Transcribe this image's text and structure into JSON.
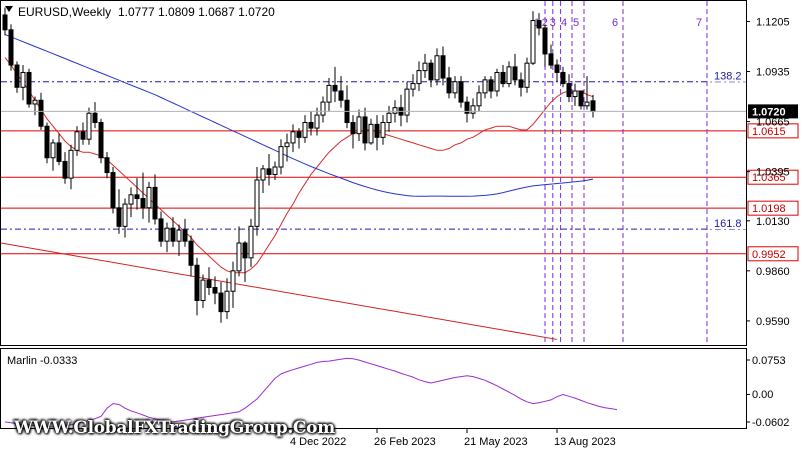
{
  "header": {
    "symbol_timeframe": "EURUSD,Weekly",
    "ohlc": "1.0777 1.0809 1.0687 1.0720"
  },
  "oscillator": {
    "label": "Marlin -0.0333",
    "scale": [
      "0.0753",
      "0.00",
      "-0.0602"
    ]
  },
  "watermark": "WWW.GlobalFXTradingGroup.Com",
  "chart_data": {
    "type": "candlestick",
    "price_scale_labels": [
      "1.1205",
      "1.0935",
      "1.0665",
      "1.0395",
      "1.0130",
      "0.9860",
      "0.9590"
    ],
    "x_tick_labels": [
      "4 Dec 2022",
      "26 Feb 2023",
      "21 May 2023",
      "13 Aug 2023"
    ],
    "ylim": [
      0.946,
      1.131
    ],
    "current_price": 1.072,
    "current_price_label": "1.0720",
    "horizontal_levels": [
      {
        "value": 1.0615,
        "label": "1.0615"
      },
      {
        "value": 1.0365,
        "label": "1.0365"
      },
      {
        "value": 1.0198,
        "label": "1.0198"
      },
      {
        "value": 0.9952,
        "label": "0.9952"
      }
    ],
    "fibo_levels": [
      {
        "value": 1.088,
        "label": "138.2"
      },
      {
        "value": 1.0085,
        "label": "161.8"
      }
    ],
    "time_lines": [
      "1",
      "2",
      "3",
      "4",
      "5",
      "6",
      "7"
    ],
    "candles": [
      [
        1.124,
        1.128,
        1.113,
        1.116
      ],
      [
        1.116,
        1.119,
        1.094,
        1.097
      ],
      [
        1.097,
        1.099,
        1.082,
        1.085
      ],
      [
        1.085,
        1.097,
        1.078,
        1.093
      ],
      [
        1.093,
        1.095,
        1.074,
        1.076
      ],
      [
        1.076,
        1.08,
        1.07,
        1.078
      ],
      [
        1.078,
        1.082,
        1.062,
        1.064
      ],
      [
        1.064,
        1.066,
        1.044,
        1.047
      ],
      [
        1.047,
        1.057,
        1.04,
        1.055
      ],
      [
        1.055,
        1.06,
        1.043,
        1.045
      ],
      [
        1.045,
        1.05,
        1.033,
        1.036
      ],
      [
        1.036,
        1.054,
        1.03,
        1.051
      ],
      [
        1.051,
        1.064,
        1.048,
        1.061
      ],
      [
        1.061,
        1.066,
        1.054,
        1.057
      ],
      [
        1.057,
        1.074,
        1.054,
        1.071
      ],
      [
        1.071,
        1.077,
        1.063,
        1.066
      ],
      [
        1.066,
        1.068,
        1.044,
        1.047
      ],
      [
        1.047,
        1.05,
        1.036,
        1.039
      ],
      [
        1.039,
        1.042,
        1.017,
        1.02
      ],
      [
        1.02,
        1.03,
        1.006,
        1.01
      ],
      [
        1.01,
        1.025,
        1.004,
        1.022
      ],
      [
        1.022,
        1.031,
        1.015,
        1.027
      ],
      [
        1.027,
        1.036,
        1.019,
        1.025
      ],
      [
        1.025,
        1.039,
        1.014,
        1.02
      ],
      [
        1.02,
        1.034,
        1.012,
        1.031
      ],
      [
        1.031,
        1.038,
        1.011,
        1.014
      ],
      [
        1.014,
        1.018,
        0.999,
        1.002
      ],
      [
        1.002,
        1.012,
        0.996,
        1.009
      ],
      [
        1.009,
        1.015,
        0.999,
        1.002
      ],
      [
        1.002,
        1.011,
        0.994,
        1.008
      ],
      [
        1.008,
        1.014,
        0.999,
        1.002
      ],
      [
        1.002,
        1.005,
        0.983,
        0.989
      ],
      [
        0.989,
        0.993,
        0.962,
        0.97
      ],
      [
        0.97,
        0.984,
        0.966,
        0.981
      ],
      [
        0.981,
        0.988,
        0.973,
        0.977
      ],
      [
        0.977,
        0.983,
        0.968,
        0.974
      ],
      [
        0.974,
        0.98,
        0.958,
        0.964
      ],
      [
        0.964,
        0.982,
        0.96,
        0.975
      ],
      [
        0.975,
        0.991,
        0.966,
        0.986
      ],
      [
        0.986,
        1.01,
        0.983,
        1.001
      ],
      [
        1.001,
        1.002,
        0.98,
        0.993
      ],
      [
        0.993,
        1.014,
        0.988,
        1.01
      ],
      [
        1.01,
        1.042,
        1.005,
        1.035
      ],
      [
        1.035,
        1.043,
        1.028,
        1.041
      ],
      [
        1.041,
        1.049,
        1.032,
        1.038
      ],
      [
        1.038,
        1.045,
        1.035,
        1.042
      ],
      [
        1.042,
        1.057,
        1.038,
        1.053
      ],
      [
        1.053,
        1.06,
        1.045,
        1.055
      ],
      [
        1.055,
        1.065,
        1.05,
        1.061
      ],
      [
        1.061,
        1.063,
        1.052,
        1.058
      ],
      [
        1.058,
        1.07,
        1.055,
        1.066
      ],
      [
        1.066,
        1.072,
        1.059,
        1.063
      ],
      [
        1.063,
        1.074,
        1.059,
        1.07
      ],
      [
        1.07,
        1.08,
        1.066,
        1.077
      ],
      [
        1.077,
        1.09,
        1.072,
        1.086
      ],
      [
        1.086,
        1.096,
        1.077,
        1.083
      ],
      [
        1.083,
        1.091,
        1.074,
        1.078
      ],
      [
        1.078,
        1.086,
        1.063,
        1.066
      ],
      [
        1.066,
        1.07,
        1.052,
        1.06
      ],
      [
        1.06,
        1.073,
        1.056,
        1.069
      ],
      [
        1.069,
        1.074,
        1.051,
        1.055
      ],
      [
        1.055,
        1.068,
        1.054,
        1.065
      ],
      [
        1.065,
        1.07,
        1.051,
        1.058
      ],
      [
        1.058,
        1.07,
        1.054,
        1.066
      ],
      [
        1.066,
        1.075,
        1.061,
        1.071
      ],
      [
        1.071,
        1.078,
        1.066,
        1.074
      ],
      [
        1.074,
        1.081,
        1.064,
        1.07
      ],
      [
        1.07,
        1.088,
        1.066,
        1.084
      ],
      [
        1.084,
        1.092,
        1.08,
        1.087
      ],
      [
        1.087,
        1.099,
        1.083,
        1.094
      ],
      [
        1.094,
        1.103,
        1.09,
        1.098
      ],
      [
        1.098,
        1.1,
        1.085,
        1.089
      ],
      [
        1.089,
        1.106,
        1.086,
        1.102
      ],
      [
        1.102,
        1.107,
        1.086,
        1.09
      ],
      [
        1.09,
        1.096,
        1.079,
        1.082
      ],
      [
        1.082,
        1.091,
        1.079,
        1.088
      ],
      [
        1.088,
        1.091,
        1.074,
        1.077
      ],
      [
        1.077,
        1.08,
        1.066,
        1.071
      ],
      [
        1.071,
        1.079,
        1.068,
        1.075
      ],
      [
        1.075,
        1.086,
        1.072,
        1.082
      ],
      [
        1.082,
        1.091,
        1.079,
        1.089
      ],
      [
        1.089,
        1.091,
        1.079,
        1.083
      ],
      [
        1.083,
        1.095,
        1.08,
        1.093
      ],
      [
        1.093,
        1.097,
        1.085,
        1.087
      ],
      [
        1.087,
        1.099,
        1.085,
        1.096
      ],
      [
        1.096,
        1.103,
        1.086,
        1.089
      ],
      [
        1.089,
        1.093,
        1.08,
        1.085
      ],
      [
        1.085,
        1.101,
        1.082,
        1.098
      ],
      [
        1.098,
        1.126,
        1.097,
        1.121
      ],
      [
        1.121,
        1.125,
        1.113,
        1.117
      ],
      [
        1.117,
        1.119,
        1.096,
        1.103
      ],
      [
        1.103,
        1.108,
        1.095,
        1.097
      ],
      [
        1.097,
        1.1,
        1.088,
        1.093
      ],
      [
        1.093,
        1.096,
        1.085,
        1.087
      ],
      [
        1.087,
        1.092,
        1.077,
        1.08
      ],
      [
        1.08,
        1.087,
        1.075,
        1.083
      ],
      [
        1.083,
        1.083,
        1.073,
        1.075
      ],
      [
        1.075,
        1.091,
        1.073,
        1.077
      ],
      [
        1.0777,
        1.0809,
        1.0687,
        1.072
      ]
    ],
    "red_ma": [
      1.101,
      1.097,
      1.092,
      1.088,
      1.083,
      1.078,
      1.073,
      1.068,
      1.064,
      1.06,
      1.056,
      1.053,
      1.051,
      1.05,
      1.05,
      1.049,
      1.048,
      1.046,
      1.043,
      1.04,
      1.037,
      1.034,
      1.031,
      1.028,
      1.025,
      1.022,
      1.019,
      1.016,
      1.013,
      1.01,
      1.007,
      1.004,
      1.0,
      0.997,
      0.994,
      0.991,
      0.988,
      0.986,
      0.985,
      0.985,
      0.985,
      0.987,
      0.99,
      0.995,
      1.0,
      1.005,
      1.011,
      1.017,
      1.022,
      1.028,
      1.033,
      1.038,
      1.042,
      1.046,
      1.05,
      1.053,
      1.056,
      1.058,
      1.06,
      1.061,
      1.062,
      1.062,
      1.061,
      1.06,
      1.059,
      1.058,
      1.057,
      1.056,
      1.055,
      1.054,
      1.053,
      1.052,
      1.051,
      1.051,
      1.052,
      1.054,
      1.055,
      1.057,
      1.058,
      1.06,
      1.062,
      1.063,
      1.064,
      1.064,
      1.064,
      1.063,
      1.062,
      1.062,
      1.065,
      1.069,
      1.073,
      1.077,
      1.08,
      1.082,
      1.083,
      1.083,
      1.083,
      1.081,
      1.08
    ],
    "blue_ma": [
      1.1135,
      1.1122,
      1.1109,
      1.1096,
      1.1083,
      1.107,
      1.1057,
      1.1044,
      1.1031,
      1.1018,
      1.1005,
      1.0992,
      1.0979,
      1.0966,
      1.0953,
      1.094,
      1.0927,
      1.0914,
      1.0901,
      1.0888,
      1.0875,
      1.0862,
      1.0849,
      1.0836,
      1.0823,
      1.081,
      1.0795,
      1.078,
      1.0765,
      1.075,
      1.0735,
      1.072,
      1.0705,
      1.069,
      1.0675,
      1.066,
      1.0645,
      1.063,
      1.0615,
      1.06,
      1.0585,
      1.057,
      1.0555,
      1.054,
      1.0525,
      1.051,
      1.0495,
      1.048,
      1.0465,
      1.0451,
      1.0437,
      1.0423,
      1.041,
      1.0397,
      1.0384,
      1.0372,
      1.036,
      1.0348,
      1.0336,
      1.0325,
      1.0315,
      1.0305,
      1.0296,
      1.0288,
      1.0281,
      1.0275,
      1.027,
      1.0266,
      1.0263,
      1.0262,
      1.0262,
      1.0263,
      1.0263,
      1.0263,
      1.0262,
      1.0262,
      1.0262,
      1.0262,
      1.0263,
      1.0265,
      1.0267,
      1.027,
      1.0275,
      1.0282,
      1.029,
      1.0298,
      1.0305,
      1.0312,
      1.0318,
      1.0322,
      1.0325,
      1.0328,
      1.0331,
      1.0334,
      1.0337,
      1.034,
      1.0344,
      1.0349,
      1.0355
    ],
    "trendline": {
      "from": 1.001,
      "to": 0.949
    },
    "marlin_values": [
      -0.06,
      -0.062,
      -0.064,
      -0.066,
      -0.067,
      -0.068,
      -0.069,
      -0.07,
      -0.071,
      -0.07,
      -0.068,
      -0.066,
      -0.063,
      -0.06,
      -0.057,
      -0.053,
      -0.048,
      -0.03,
      -0.02,
      -0.022,
      -0.03,
      -0.036,
      -0.04,
      -0.045,
      -0.05,
      -0.053,
      -0.056,
      -0.058,
      -0.06,
      -0.058,
      -0.056,
      -0.054,
      -0.052,
      -0.05,
      -0.048,
      -0.046,
      -0.044,
      -0.042,
      -0.04,
      -0.038,
      -0.03,
      -0.02,
      -0.01,
      0.005,
      0.02,
      0.035,
      0.045,
      0.05,
      0.054,
      0.058,
      0.062,
      0.066,
      0.07,
      0.072,
      0.073,
      0.075,
      0.077,
      0.079,
      0.078,
      0.075,
      0.071,
      0.067,
      0.063,
      0.059,
      0.055,
      0.051,
      0.046,
      0.042,
      0.038,
      0.032,
      0.028,
      0.025,
      0.028,
      0.031,
      0.034,
      0.037,
      0.039,
      0.041,
      0.039,
      0.035,
      0.031,
      0.025,
      0.019,
      0.012,
      0.005,
      -0.002,
      -0.01,
      -0.016,
      -0.02,
      -0.018,
      -0.015,
      -0.012,
      -0.005,
      0.0,
      -0.004,
      -0.008,
      -0.013,
      -0.018,
      -0.022,
      -0.026,
      -0.029,
      -0.031,
      -0.033
    ]
  },
  "colors": {
    "bull": "#ffffff",
    "bear": "#000000",
    "red_ma": "#d92a2a",
    "blue_ma": "#2635cc",
    "level": "#e00000",
    "fibo": "#1a1aa0",
    "time_lines": "#7a2ad0",
    "trendline": "#d02020",
    "marlin": "#9a2ed0"
  }
}
